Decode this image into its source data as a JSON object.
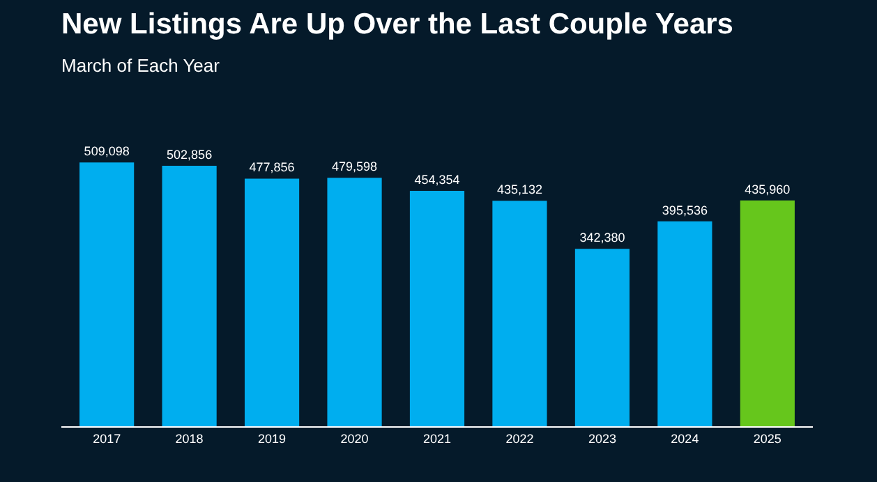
{
  "chart_data": {
    "type": "bar",
    "title": "New Listings Are Up Over the Last Couple Years",
    "subtitle": "March of Each Year",
    "categories": [
      "2017",
      "2018",
      "2019",
      "2020",
      "2021",
      "2022",
      "2023",
      "2024",
      "2025"
    ],
    "values": [
      509098,
      502856,
      477856,
      479598,
      454354,
      435132,
      342380,
      395536,
      435960
    ],
    "colors": [
      "#00aeef",
      "#00aeef",
      "#00aeef",
      "#00aeef",
      "#00aeef",
      "#00aeef",
      "#00aeef",
      "#00aeef",
      "#66c61c"
    ],
    "value_labels": [
      "509,098",
      "502,856",
      "477,856",
      "479,598",
      "454,354",
      "435,132",
      "342,380",
      "395,536",
      "435,960"
    ],
    "tick_labels": "x",
    "grid": false,
    "legend": false
  }
}
